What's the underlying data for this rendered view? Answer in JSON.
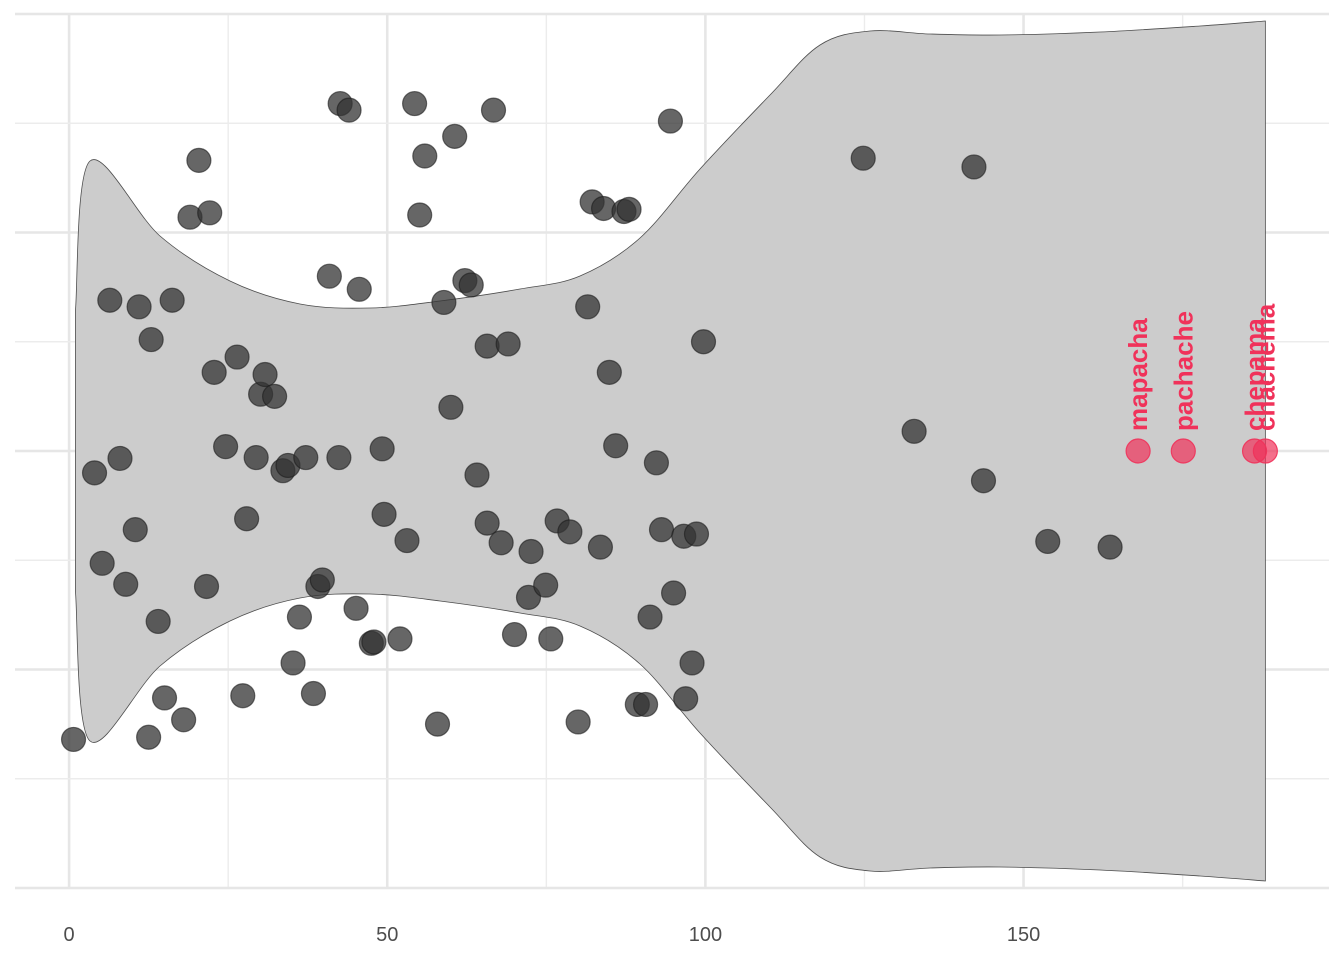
{
  "chart_data": {
    "type": "scatter",
    "title": "",
    "xlabel": "",
    "ylabel": "",
    "xlim": [
      -8.5,
      198
    ],
    "x_ticks": [
      0,
      50,
      100,
      150
    ],
    "x_tick_labels": [
      "0",
      "50",
      "100",
      "150"
    ],
    "ylim": [
      -1.0,
      1.0
    ],
    "grid": true,
    "y_tick_labels_shown": false,
    "violin": {
      "fill": "#cccccc",
      "stroke": "#4d4d4d",
      "x_range": [
        1,
        188
      ],
      "center_y": 0
    },
    "points_color": "#333333",
    "highlight_color": "#f0325a",
    "points": [
      {
        "x": 0.7,
        "y": -0.66
      },
      {
        "x": 12.5,
        "y": -0.655
      },
      {
        "x": 18.0,
        "y": -0.615
      },
      {
        "x": 15.0,
        "y": -0.565
      },
      {
        "x": 27.3,
        "y": -0.56
      },
      {
        "x": 38.4,
        "y": -0.555
      },
      {
        "x": 57.9,
        "y": -0.625
      },
      {
        "x": 80.0,
        "y": -0.62
      },
      {
        "x": 89.3,
        "y": -0.58
      },
      {
        "x": 90.6,
        "y": -0.58
      },
      {
        "x": 96.9,
        "y": -0.567
      },
      {
        "x": 97.9,
        "y": -0.485
      },
      {
        "x": 35.2,
        "y": -0.485
      },
      {
        "x": 47.5,
        "y": -0.44
      },
      {
        "x": 47.9,
        "y": -0.437
      },
      {
        "x": 52.0,
        "y": -0.43
      },
      {
        "x": 70.0,
        "y": -0.42
      },
      {
        "x": 75.7,
        "y": -0.43
      },
      {
        "x": 91.3,
        "y": -0.38
      },
      {
        "x": 14.0,
        "y": -0.39
      },
      {
        "x": 36.2,
        "y": -0.38
      },
      {
        "x": 45.1,
        "y": -0.36
      },
      {
        "x": 8.9,
        "y": -0.305
      },
      {
        "x": 21.6,
        "y": -0.31
      },
      {
        "x": 39.1,
        "y": -0.31
      },
      {
        "x": 39.8,
        "y": -0.295
      },
      {
        "x": 72.2,
        "y": -0.335
      },
      {
        "x": 74.9,
        "y": -0.307
      },
      {
        "x": 95.0,
        "y": -0.325
      },
      {
        "x": 5.2,
        "y": -0.257
      },
      {
        "x": 10.4,
        "y": -0.18
      },
      {
        "x": 27.9,
        "y": -0.155
      },
      {
        "x": 49.5,
        "y": -0.145
      },
      {
        "x": 53.1,
        "y": -0.205
      },
      {
        "x": 65.7,
        "y": -0.165
      },
      {
        "x": 67.9,
        "y": -0.21
      },
      {
        "x": 72.6,
        "y": -0.23
      },
      {
        "x": 76.7,
        "y": -0.16
      },
      {
        "x": 78.7,
        "y": -0.185
      },
      {
        "x": 83.5,
        "y": -0.22
      },
      {
        "x": 93.1,
        "y": -0.18
      },
      {
        "x": 96.6,
        "y": -0.195
      },
      {
        "x": 98.6,
        "y": -0.19
      },
      {
        "x": 4.0,
        "y": -0.05
      },
      {
        "x": 8.0,
        "y": -0.017
      },
      {
        "x": 24.6,
        "y": 0.01
      },
      {
        "x": 29.4,
        "y": -0.015
      },
      {
        "x": 33.6,
        "y": -0.045
      },
      {
        "x": 34.4,
        "y": -0.033
      },
      {
        "x": 37.2,
        "y": -0.015
      },
      {
        "x": 42.4,
        "y": -0.015
      },
      {
        "x": 49.2,
        "y": 0.005
      },
      {
        "x": 64.1,
        "y": -0.055
      },
      {
        "x": 85.9,
        "y": 0.012
      },
      {
        "x": 92.3,
        "y": -0.027
      },
      {
        "x": 132.8,
        "y": 0.045
      },
      {
        "x": 143.7,
        "y": -0.068
      },
      {
        "x": 153.8,
        "y": -0.207
      },
      {
        "x": 163.6,
        "y": -0.22
      },
      {
        "x": 22.8,
        "y": 0.18
      },
      {
        "x": 26.4,
        "y": 0.215
      },
      {
        "x": 30.1,
        "y": 0.13
      },
      {
        "x": 30.8,
        "y": 0.175
      },
      {
        "x": 32.3,
        "y": 0.125
      },
      {
        "x": 60.0,
        "y": 0.1
      },
      {
        "x": 65.7,
        "y": 0.24
      },
      {
        "x": 69.0,
        "y": 0.245
      },
      {
        "x": 84.9,
        "y": 0.18
      },
      {
        "x": 99.7,
        "y": 0.25
      },
      {
        "x": 6.4,
        "y": 0.345
      },
      {
        "x": 11.0,
        "y": 0.33
      },
      {
        "x": 12.9,
        "y": 0.255
      },
      {
        "x": 16.2,
        "y": 0.345
      },
      {
        "x": 40.9,
        "y": 0.4
      },
      {
        "x": 45.6,
        "y": 0.37
      },
      {
        "x": 58.9,
        "y": 0.34
      },
      {
        "x": 62.2,
        "y": 0.39
      },
      {
        "x": 63.2,
        "y": 0.38
      },
      {
        "x": 81.5,
        "y": 0.33
      },
      {
        "x": 19.0,
        "y": 0.535
      },
      {
        "x": 22.1,
        "y": 0.545
      },
      {
        "x": 55.1,
        "y": 0.54
      },
      {
        "x": 82.2,
        "y": 0.57
      },
      {
        "x": 84.0,
        "y": 0.555
      },
      {
        "x": 87.2,
        "y": 0.548
      },
      {
        "x": 88.0,
        "y": 0.553
      },
      {
        "x": 20.4,
        "y": 0.665
      },
      {
        "x": 55.9,
        "y": 0.675
      },
      {
        "x": 60.6,
        "y": 0.72
      },
      {
        "x": 124.8,
        "y": 0.67
      },
      {
        "x": 142.2,
        "y": 0.65
      },
      {
        "x": 42.6,
        "y": 0.795
      },
      {
        "x": 44.0,
        "y": 0.78
      },
      {
        "x": 54.3,
        "y": 0.795
      },
      {
        "x": 66.7,
        "y": 0.78
      },
      {
        "x": 94.5,
        "y": 0.755
      }
    ],
    "highlighted": [
      {
        "label": "mapacha",
        "x": 168.0,
        "y": 0.0
      },
      {
        "label": "pachache",
        "x": 175.1,
        "y": 0.0
      },
      {
        "label": "chepama",
        "x": 186.3,
        "y": 0.0
      },
      {
        "label": "chachema",
        "x": 188.0,
        "y": 0.0
      }
    ]
  }
}
